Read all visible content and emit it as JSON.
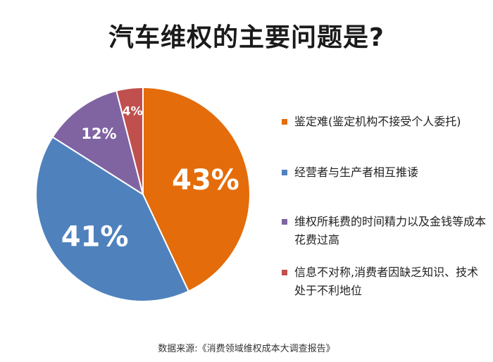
{
  "chart_data": {
    "type": "pie",
    "title": "汽车维权的主要问题是?",
    "source": "数据来源:《消费领域维权成本大调查报告》",
    "legend_position": "right",
    "slices": [
      {
        "label": "鉴定难(鉴定机构不接受个人委托)",
        "value": 43,
        "display": "43%",
        "color": "#E46C0A"
      },
      {
        "label": "经营者与生产者相互推诿",
        "value": 41,
        "display": "41%",
        "color": "#4F81BD"
      },
      {
        "label": "维权所耗费的时间精力以及金钱等成本花费过高",
        "value": 12,
        "display": "12%",
        "color": "#8064A2"
      },
      {
        "label": "信息不对称,消费者因缺乏知识、技术处于不利地位",
        "value": 4,
        "display": "4%",
        "color": "#C0504D"
      }
    ]
  }
}
